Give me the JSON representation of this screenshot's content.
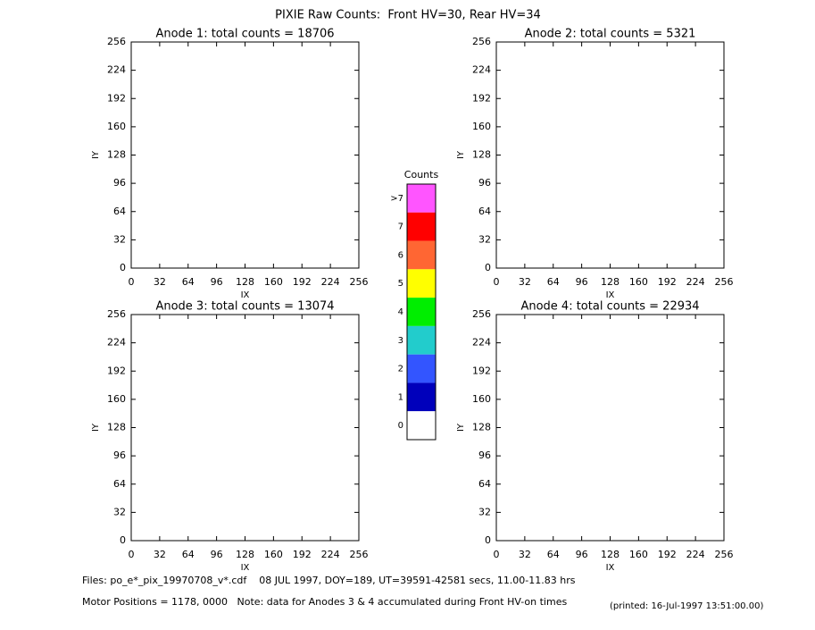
{
  "title": "PIXIE Raw Counts:  Front HV=30, Rear HV=34",
  "chart_data": [
    {
      "type": "heatmap",
      "title": "Anode 1: total counts = 18706",
      "xlabel": "IX",
      "ylabel": "IY",
      "xlim": [
        0,
        256
      ],
      "ylim": [
        0,
        256
      ],
      "xticks": [
        0,
        32,
        64,
        96,
        128,
        160,
        192,
        224,
        256
      ],
      "yticks": [
        0,
        32,
        64,
        96,
        128,
        160,
        192,
        224,
        256
      ]
    },
    {
      "type": "heatmap",
      "title": "Anode 2: total counts = 5321",
      "xlabel": "IX",
      "ylabel": "IY",
      "xlim": [
        0,
        256
      ],
      "ylim": [
        0,
        256
      ],
      "xticks": [
        0,
        32,
        64,
        96,
        128,
        160,
        192,
        224,
        256
      ],
      "yticks": [
        0,
        32,
        64,
        96,
        128,
        160,
        192,
        224,
        256
      ]
    },
    {
      "type": "heatmap",
      "title": "Anode 3: total counts = 13074",
      "xlabel": "IX",
      "ylabel": "IY",
      "xlim": [
        0,
        256
      ],
      "ylim": [
        0,
        256
      ],
      "xticks": [
        0,
        32,
        64,
        96,
        128,
        160,
        192,
        224,
        256
      ],
      "yticks": [
        0,
        32,
        64,
        96,
        128,
        160,
        192,
        224,
        256
      ]
    },
    {
      "type": "heatmap",
      "title": "Anode 4: total counts = 22934",
      "xlabel": "IX",
      "ylabel": "IY",
      "xlim": [
        0,
        256
      ],
      "ylim": [
        0,
        256
      ],
      "xticks": [
        0,
        32,
        64,
        96,
        128,
        160,
        192,
        224,
        256
      ],
      "yticks": [
        0,
        32,
        64,
        96,
        128,
        160,
        192,
        224,
        256
      ]
    }
  ],
  "color_scale": {
    "title": "Counts",
    "levels": [
      {
        "label": ">7",
        "color": "#ff55ff"
      },
      {
        "label": "7",
        "color": "#ff0000"
      },
      {
        "label": "6",
        "color": "#ff6633"
      },
      {
        "label": "5",
        "color": "#ffff00"
      },
      {
        "label": "4",
        "color": "#00ee00"
      },
      {
        "label": "3",
        "color": "#22cccc"
      },
      {
        "label": "2",
        "color": "#3355ff"
      },
      {
        "label": "1",
        "color": "#0000bb"
      },
      {
        "label": "0",
        "color": "#ffffff"
      }
    ]
  },
  "footer": {
    "files": "Files: po_e*_pix_19970708_v*.cdf    08 JUL 1997, DOY=189, UT=39591-42581 secs, 11.00-11.83 hrs",
    "motor": "Motor Positions = 1178, 0000   Note: data for Anodes 3 & 4 accumulated during Front HV-on times",
    "printed": "(printed: 16-Jul-1997 13:51:00.00)"
  }
}
